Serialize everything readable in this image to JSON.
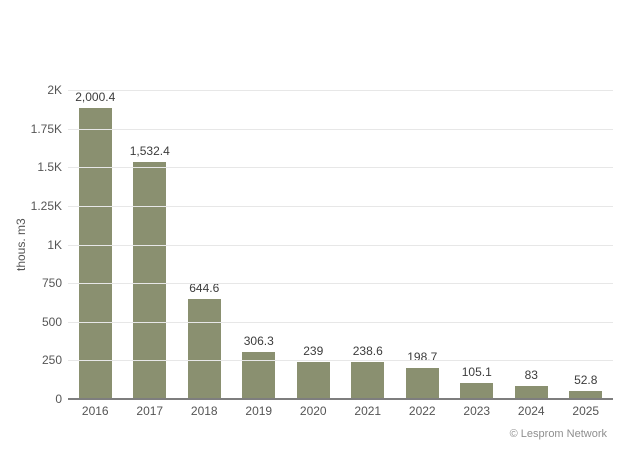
{
  "chart_data": {
    "type": "bar",
    "title": "",
    "ylabel": "thous. m3",
    "xlabel": "",
    "ylim": [
      0,
      2000
    ],
    "grid": true,
    "legend": false,
    "categories": [
      "2016",
      "2017",
      "2018",
      "2019",
      "2020",
      "2021",
      "2022",
      "2023",
      "2024",
      "2025"
    ],
    "values": [
      2000.4,
      1532.4,
      644.6,
      306.3,
      239,
      238.6,
      198.7,
      105.1,
      83,
      52.8
    ],
    "value_labels": [
      "2,000.4",
      "1,532.4",
      "644.6",
      "306.3",
      "239",
      "238.6",
      "198.7",
      "105.1",
      "83",
      "52.8"
    ],
    "yticks": [
      {
        "value": 2000,
        "label": "2K"
      },
      {
        "value": 1750,
        "label": "1.75K"
      },
      {
        "value": 1500,
        "label": "1.5K"
      },
      {
        "value": 1250,
        "label": "1.25K"
      },
      {
        "value": 1000,
        "label": "1K"
      },
      {
        "value": 750,
        "label": "750"
      },
      {
        "value": 500,
        "label": "500"
      },
      {
        "value": 250,
        "label": "250"
      },
      {
        "value": 0,
        "label": "0"
      }
    ],
    "colors": {
      "bar": "#8a9070",
      "gridline": "#e7e7e7",
      "axis_line": "#7e7e7e",
      "value_label": "#3c3c3c",
      "tick_label": "#555555",
      "credit": "#8f8f8f",
      "background": "#ffffff"
    }
  },
  "footer": {
    "credit": "© Lesprom Network"
  }
}
